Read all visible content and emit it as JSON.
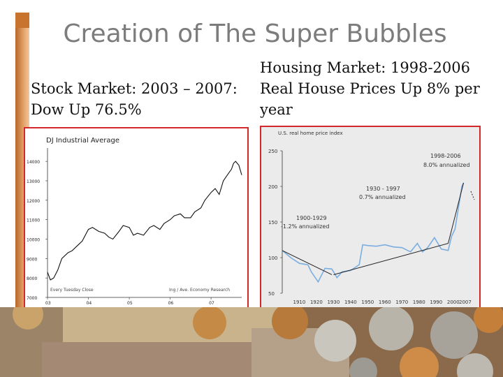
{
  "slide": {
    "title": "Creation of The Super Bubbles",
    "left_caption": "Stock Market:  2003 – 2007: Dow Up 76.5%",
    "right_caption": "Housing Market: 1998-2006 Real House Prices Up 8% per year"
  },
  "colors": {
    "frame": "#d5282a",
    "accent_bar": "#c8742e",
    "housing_line": "#7aaee0"
  },
  "chart_data": [
    {
      "type": "line",
      "title": "DJ Industrial Average",
      "y_ticks": [
        "14000",
        "13000",
        "12000",
        "11000",
        "10000",
        "9000",
        "8000",
        "7000"
      ],
      "ylim": [
        7000,
        14400
      ],
      "xlim": [
        2003.0,
        2007.75
      ],
      "x_ticks": [
        {
          "x": 2003.0,
          "label": "03"
        },
        {
          "x": 2004.0,
          "label": "04"
        },
        {
          "x": 2005.0,
          "label": "05"
        },
        {
          "x": 2006.0,
          "label": "06"
        },
        {
          "x": 2007.0,
          "label": "07"
        }
      ],
      "footer_left": "Every Tuesday Close",
      "footer_right": "Ing / Ave. Economy Research",
      "series": [
        {
          "x": [
            2003.0,
            2003.07,
            2003.15,
            2003.25,
            2003.35,
            2003.5,
            2003.6,
            2003.75,
            2003.85,
            2004.0,
            2004.1,
            2004.25,
            2004.4,
            2004.5,
            2004.6,
            2004.75,
            2004.85,
            2005.0,
            2005.1,
            2005.2,
            2005.35,
            2005.5,
            2005.6,
            2005.75,
            2005.85,
            2006.0,
            2006.1,
            2006.25,
            2006.35,
            2006.5,
            2006.6,
            2006.75,
            2006.85,
            2007.0,
            2007.1,
            2007.2,
            2007.3,
            2007.4,
            2007.5,
            2007.55,
            2007.6,
            2007.68,
            2007.75
          ],
          "values": [
            8300,
            7900,
            8000,
            8400,
            9000,
            9300,
            9400,
            9700,
            9900,
            10500,
            10600,
            10400,
            10300,
            10100,
            10000,
            10400,
            10700,
            10600,
            10200,
            10300,
            10200,
            10600,
            10700,
            10500,
            10800,
            11000,
            11200,
            11300,
            11100,
            11100,
            11400,
            11600,
            12000,
            12400,
            12600,
            12300,
            13000,
            13300,
            13600,
            13900,
            14000,
            13800,
            13300
          ]
        }
      ]
    },
    {
      "type": "line",
      "title": "U.S. real home price index",
      "y_ticks": [
        250,
        200,
        150,
        100,
        50
      ],
      "ylim": [
        50,
        250
      ],
      "xlim": [
        1900,
        2007
      ],
      "x_ticks": [
        1910,
        1920,
        1930,
        1940,
        1950,
        1960,
        1970,
        1980,
        1990,
        2000,
        2007
      ],
      "annotations": [
        "1998-2006",
        "8.0% annualized",
        "1930 - 1997",
        "0.7% annualized",
        "1900-1929",
        "-1.2% annualized"
      ],
      "series": [
        {
          "x": [
            1900,
            1905,
            1910,
            1915,
            1917,
            1921,
            1925,
            1929,
            1932,
            1935,
            1940,
            1945,
            1947,
            1950,
            1955,
            1960,
            1965,
            1970,
            1975,
            1979,
            1982,
            1985,
            1989,
            1993,
            1997,
            1999,
            2001,
            2003,
            2004,
            2005,
            2006
          ],
          "values": [
            110,
            100,
            92,
            90,
            80,
            66,
            85,
            84,
            72,
            80,
            82,
            90,
            118,
            117,
            116,
            118,
            115,
            114,
            108,
            120,
            108,
            114,
            128,
            112,
            110,
            130,
            140,
            170,
            185,
            200,
            205
          ]
        }
      ]
    }
  ]
}
